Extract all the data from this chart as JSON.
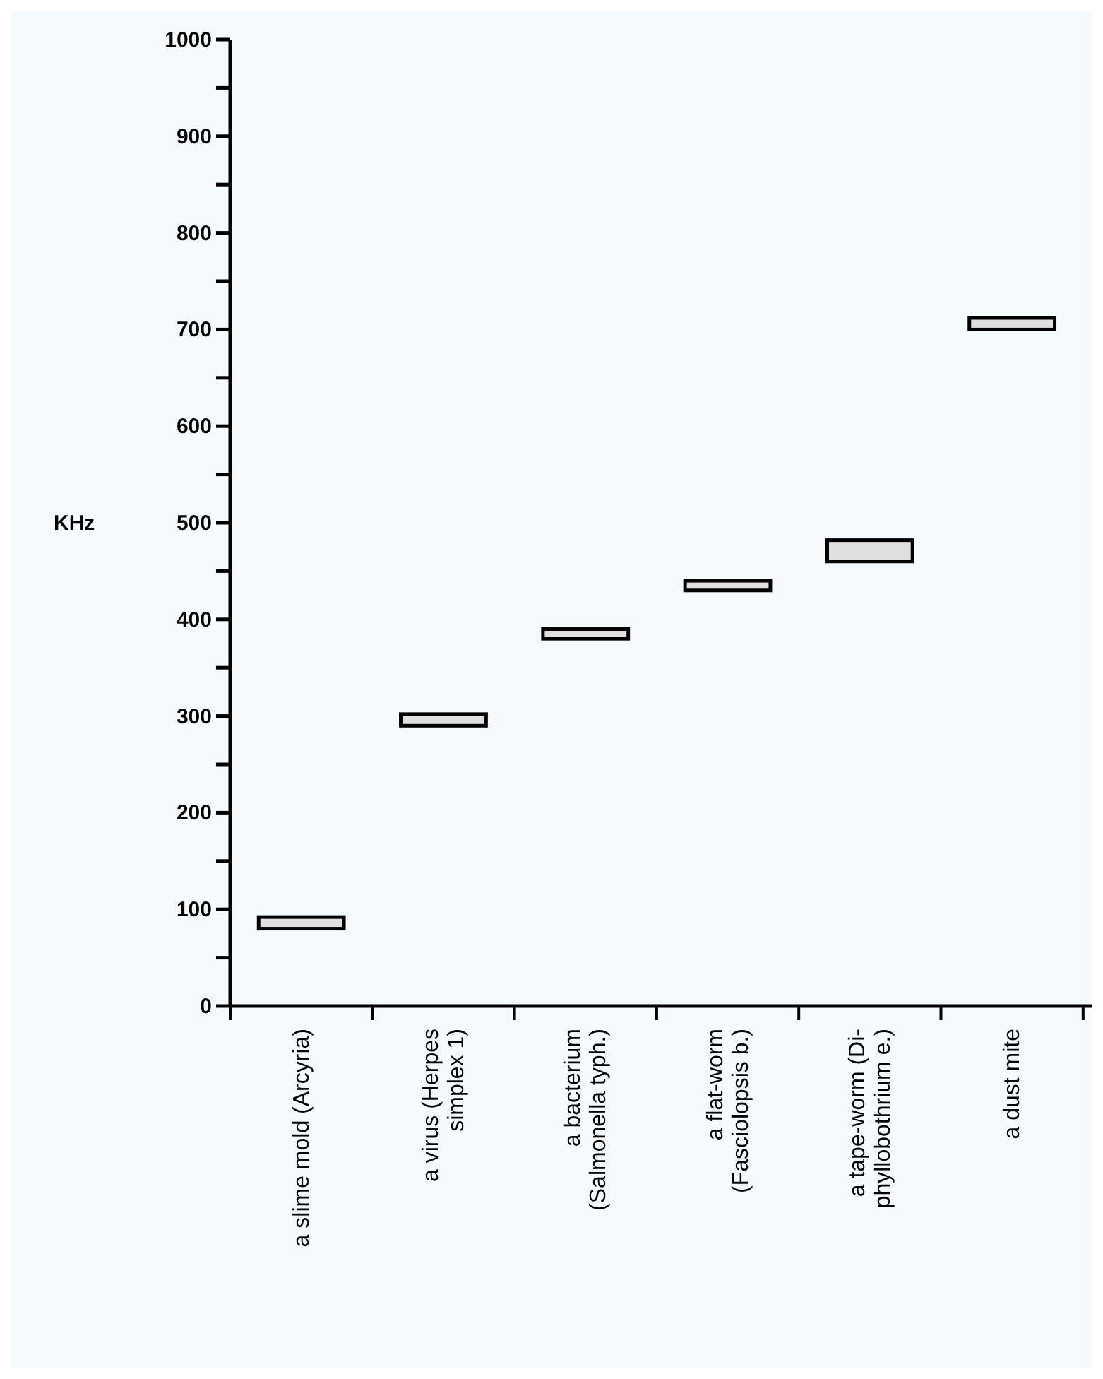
{
  "chart_data": {
    "type": "bar",
    "ylabel": "KHz",
    "categories": [
      "a slime mold (Arcyria)",
      "a virus (Herpes simplex 1)",
      "a bacterium (Salmonella typh.)",
      "a flat-worm (Fasciolopsis b.)",
      "a tape-worm (Di-phyllobothrium e.)",
      "a dust mite"
    ],
    "base": [
      80,
      290,
      380,
      430,
      460,
      700
    ],
    "values": [
      12,
      12,
      10,
      10,
      22,
      12
    ],
    "color": "#e0e0e0",
    "ylim": [
      0,
      1000
    ],
    "yticks": [
      0,
      {
        "value": 50,
        "label": null
      },
      100,
      {
        "value": 150,
        "label": null
      },
      200,
      {
        "value": 250,
        "label": null
      },
      300,
      {
        "value": 350,
        "label": null
      },
      400,
      {
        "value": 450,
        "label": null
      },
      500,
      {
        "value": 550,
        "label": null
      },
      600,
      {
        "value": 650,
        "label": null
      },
      700,
      {
        "value": 750,
        "label": null
      },
      800,
      {
        "value": 850,
        "label": null
      },
      900,
      {
        "value": 950,
        "label": null
      },
      1000
    ],
    "grid": false
  }
}
